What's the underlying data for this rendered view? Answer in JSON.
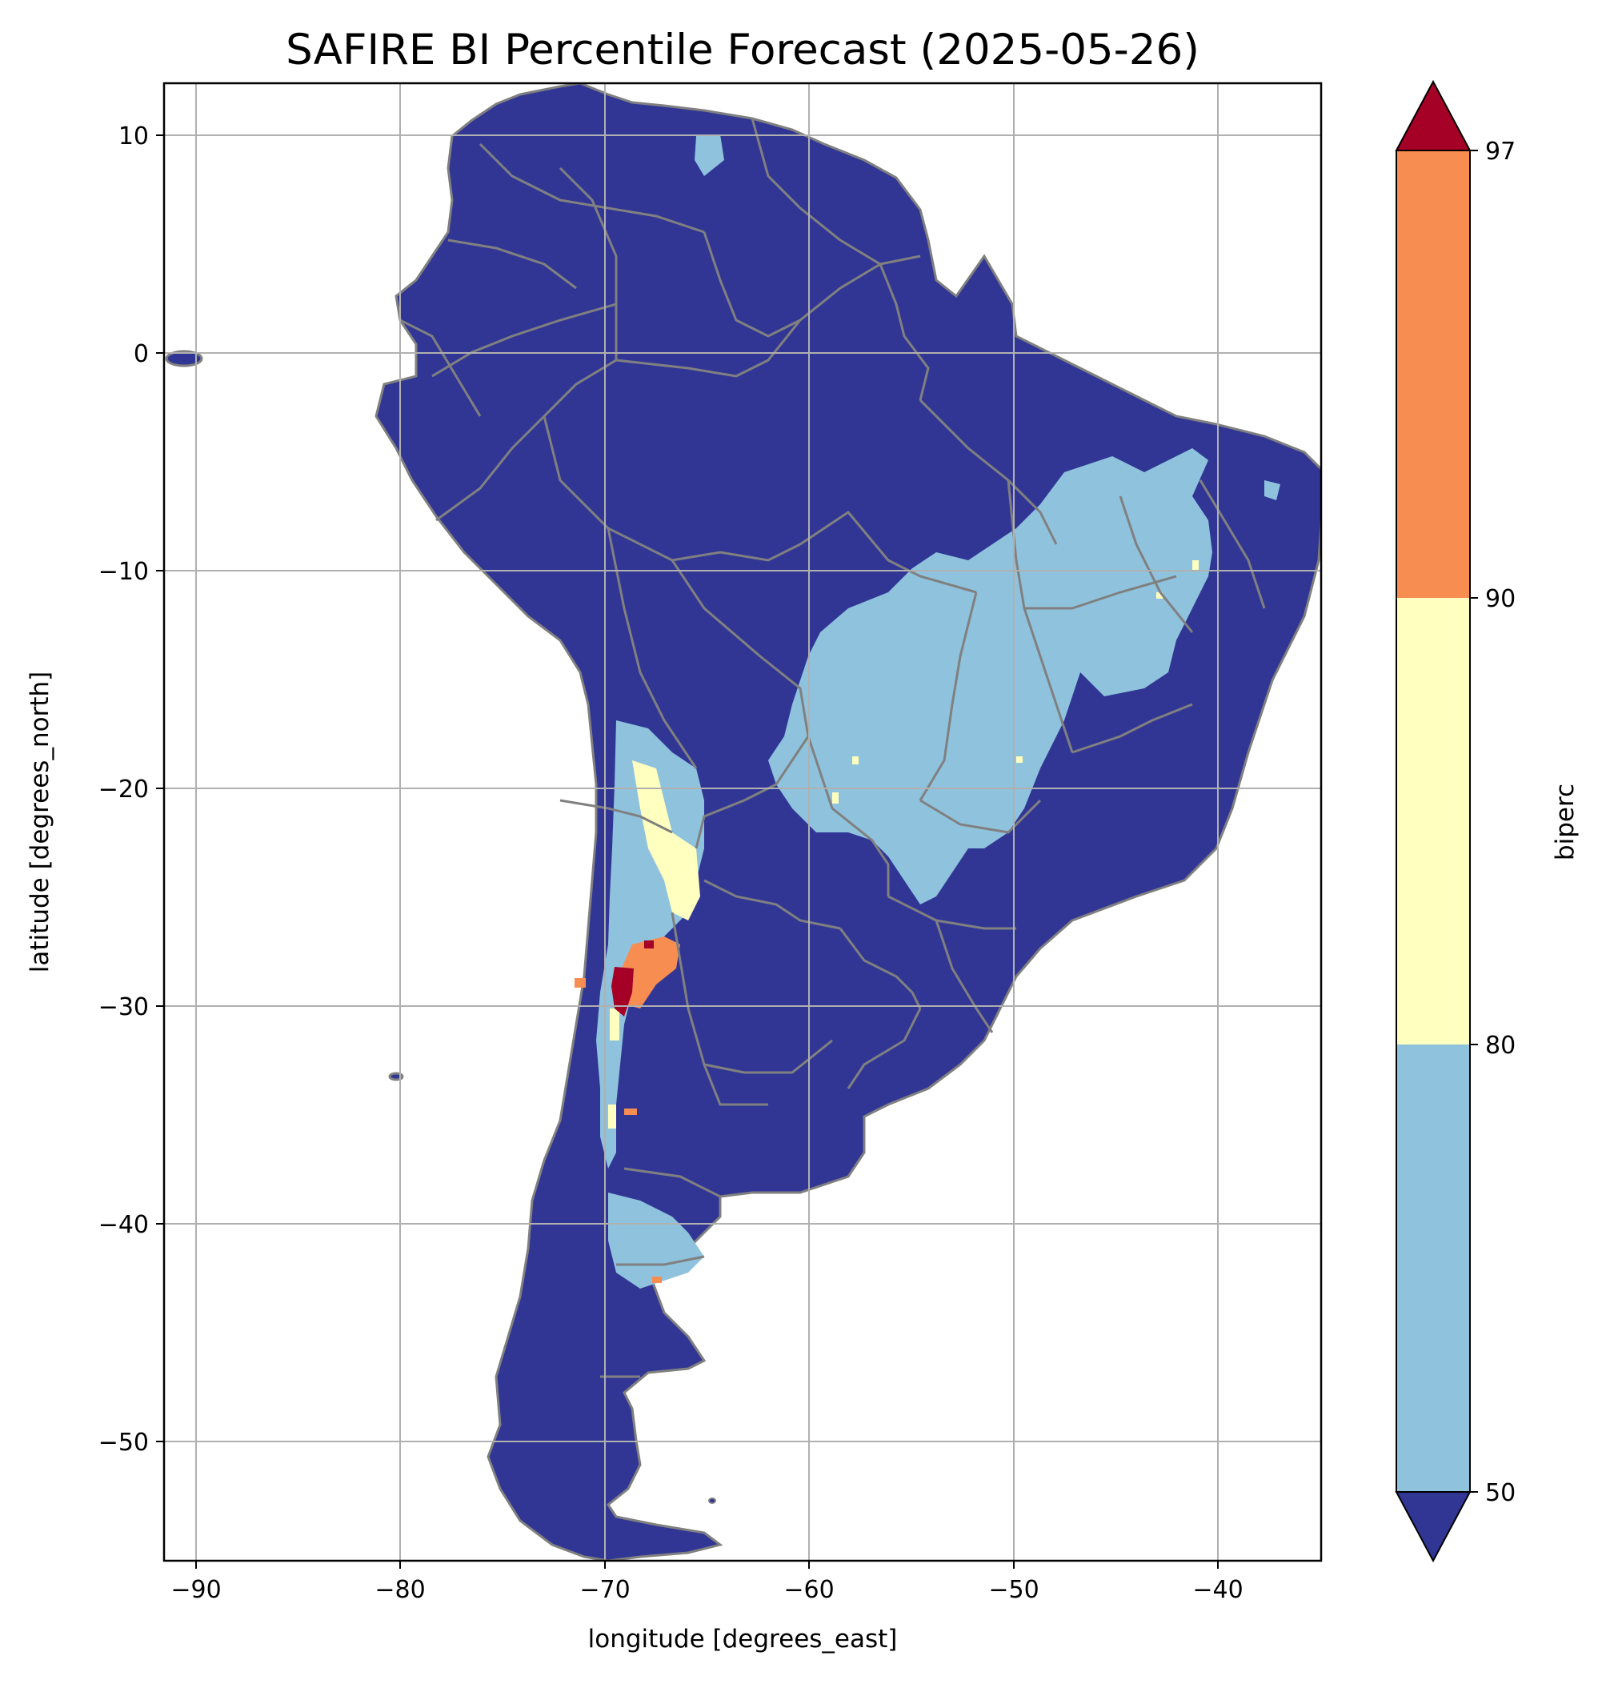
{
  "title": "SAFIRE BI Percentile Forecast (2025-05-26)",
  "xlabel": "longitude [degrees_east]",
  "ylabel": "latitude [degrees_north]",
  "colorbar_label": "biperc",
  "x_ticks": [
    "−90",
    "−80",
    "−70",
    "−60",
    "−50",
    "−40"
  ],
  "y_ticks": [
    "10",
    "0",
    "−10",
    "−20",
    "−30",
    "−40",
    "−50"
  ],
  "colorbar_ticks": [
    "97",
    "90",
    "80",
    "50"
  ],
  "colors": {
    "below_50": "#313695",
    "50_80": "#8fc3dd",
    "80_90": "#ffffc0",
    "90_97": "#f88d52",
    "above_97": "#a50026",
    "borders": "#808080",
    "grid": "#b0b0b0",
    "ocean": "#ffffff"
  },
  "chart_data": {
    "type": "heatmap",
    "title": "SAFIRE BI Percentile Forecast (2025-05-26)",
    "xlabel": "longitude [degrees_east]",
    "ylabel": "latitude [degrees_north]",
    "xlim": [
      -91.5,
      -35
    ],
    "ylim": [
      -55.9,
      12.5
    ],
    "x_ticks": [
      -90,
      -80,
      -70,
      -60,
      -50,
      -40
    ],
    "y_ticks": [
      10,
      0,
      -10,
      -20,
      -30,
      -40,
      -50
    ],
    "grid": true,
    "colorbar": {
      "label": "biperc",
      "boundaries": [
        50,
        80,
        90,
        97
      ],
      "extend": "both",
      "classes": [
        {
          "range": "<50",
          "color": "#313695"
        },
        {
          "range": "50-80",
          "color": "#8fc3dd"
        },
        {
          "range": "80-90",
          "color": "#ffffc0"
        },
        {
          "range": "90-97",
          "color": "#f88d52"
        },
        {
          "range": ">97",
          "color": "#a50026"
        }
      ]
    },
    "region": "South America"
  }
}
